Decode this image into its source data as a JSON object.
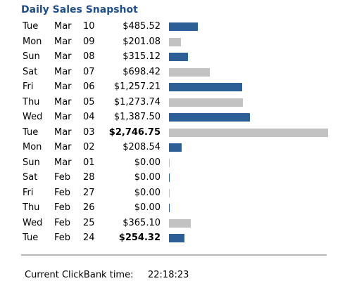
{
  "header": {
    "title": "Daily Sales Snapshot"
  },
  "table": {
    "rows": [
      {
        "day": "Tue",
        "month": "Mar",
        "date": "10",
        "amount": "$485.52",
        "value": 485.52
      },
      {
        "day": "Mon",
        "month": "Mar",
        "date": "09",
        "amount": "$201.08",
        "value": 201.08
      },
      {
        "day": "Sun",
        "month": "Mar",
        "date": "08",
        "amount": "$315.12",
        "value": 315.12
      },
      {
        "day": "Sat",
        "month": "Mar",
        "date": "07",
        "amount": "$698.42",
        "value": 698.42
      },
      {
        "day": "Fri",
        "month": "Mar",
        "date": "06",
        "amount": "$1,257.21",
        "value": 1257.21
      },
      {
        "day": "Thu",
        "month": "Mar",
        "date": "05",
        "amount": "$1,273.74",
        "value": 1273.74
      },
      {
        "day": "Wed",
        "month": "Mar",
        "date": "04",
        "amount": "$1,387.50",
        "value": 1387.5
      },
      {
        "day": "Tue",
        "month": "Mar",
        "date": "03",
        "amount": "$2,746.75",
        "value": 2746.75,
        "bold": true
      },
      {
        "day": "Mon",
        "month": "Mar",
        "date": "02",
        "amount": "$208.54",
        "value": 208.54
      },
      {
        "day": "Sun",
        "month": "Mar",
        "date": "01",
        "amount": "$0.00",
        "value": 0
      },
      {
        "day": "Sat",
        "month": "Feb",
        "date": "28",
        "amount": "$0.00",
        "value": 0
      },
      {
        "day": "Fri",
        "month": "Feb",
        "date": "27",
        "amount": "$0.00",
        "value": 0
      },
      {
        "day": "Thu",
        "month": "Feb",
        "date": "26",
        "amount": "$0.00",
        "value": 0
      },
      {
        "day": "Wed",
        "month": "Feb",
        "date": "25",
        "amount": "$365.10",
        "value": 365.1
      },
      {
        "day": "Tue",
        "month": "Feb",
        "date": "24",
        "amount": "$254.32",
        "value": 254.32,
        "bold": true
      }
    ]
  },
  "bar_colors": [
    "#2d5f97",
    "#c2c2c2"
  ],
  "footer": {
    "label": "Current ClickBank time:",
    "time": "22:18:23"
  }
}
